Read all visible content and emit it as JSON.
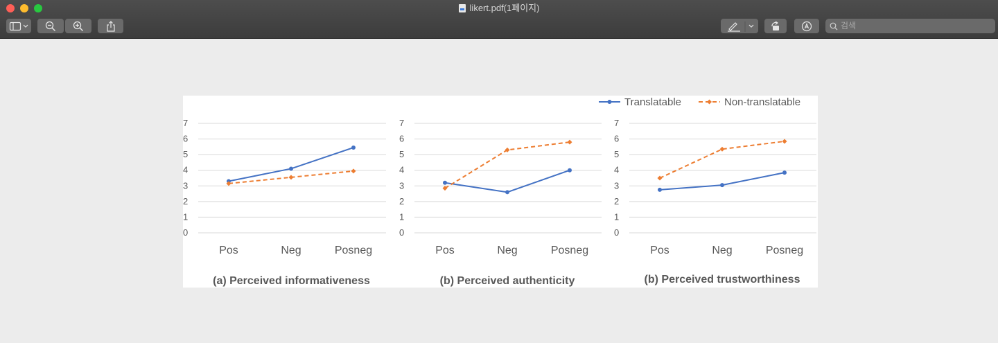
{
  "window": {
    "title": "likert.pdf(1페이지)"
  },
  "toolbar": {
    "sidebar_icon": "sidebar-icon",
    "zoom_out_icon": "zoom-out-icon",
    "zoom_in_icon": "zoom-in-icon",
    "share_icon": "share-icon",
    "markup_icon": "pen-icon",
    "rotate_icon": "rotate-icon",
    "annotate_icon": "markup-circle-icon",
    "search_placeholder": "검색"
  },
  "chart_data": [
    {
      "type": "line",
      "title": "(a) Perceived informativeness",
      "categories": [
        "Pos",
        "Neg",
        "Posneg"
      ],
      "ylim": [
        0,
        7
      ],
      "yticks": [
        "0",
        "1",
        "2",
        "3",
        "4",
        "5",
        "6",
        "7"
      ],
      "series": [
        {
          "name": "Translatable",
          "color": "#4472c4",
          "style": "solid",
          "values": [
            3.3,
            4.1,
            5.45
          ]
        },
        {
          "name": "Non-translatable",
          "color": "#ed7d31",
          "style": "dashed",
          "values": [
            3.15,
            3.55,
            3.95
          ]
        }
      ]
    },
    {
      "type": "line",
      "title": "(b) Perceived authenticity",
      "categories": [
        "Pos",
        "Neg",
        "Posneg"
      ],
      "ylim": [
        0,
        7
      ],
      "yticks": [
        "0",
        "1",
        "2",
        "3",
        "4",
        "5",
        "6",
        "7"
      ],
      "series": [
        {
          "name": "Translatable",
          "color": "#4472c4",
          "style": "solid",
          "values": [
            3.2,
            2.6,
            4.0
          ]
        },
        {
          "name": "Non-translatable",
          "color": "#ed7d31",
          "style": "dashed",
          "values": [
            2.85,
            5.3,
            5.8
          ]
        }
      ]
    },
    {
      "type": "line",
      "title": "(b) Perceived trustworthiness",
      "categories": [
        "Pos",
        "Neg",
        "Posneg"
      ],
      "ylim": [
        0,
        7
      ],
      "yticks": [
        "0",
        "1",
        "2",
        "3",
        "4",
        "5",
        "6",
        "7"
      ],
      "series": [
        {
          "name": "Translatable",
          "color": "#4472c4",
          "style": "solid",
          "values": [
            2.75,
            3.05,
            3.85
          ]
        },
        {
          "name": "Non-translatable",
          "color": "#ed7d31",
          "style": "dashed",
          "values": [
            3.5,
            5.35,
            5.85
          ]
        }
      ]
    }
  ],
  "legend": {
    "placement": "top-right",
    "items": [
      {
        "label": "Translatable",
        "color": "#4472c4",
        "style": "solid"
      },
      {
        "label": "Non-translatable",
        "color": "#ed7d31",
        "style": "dashed"
      }
    ]
  }
}
